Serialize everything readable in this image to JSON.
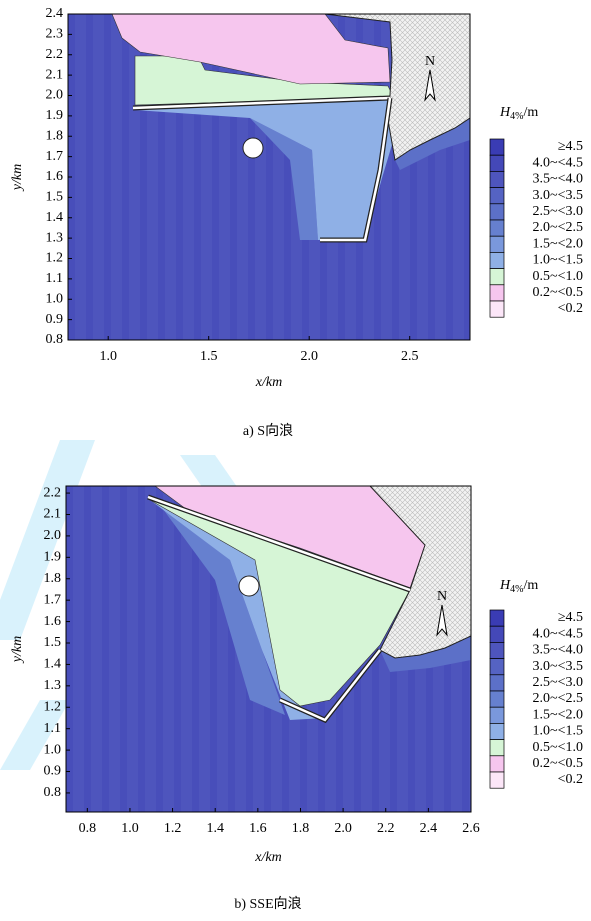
{
  "chart_data": [
    {
      "type": "contour",
      "caption": "a) S向浪",
      "xlabel": "x/km",
      "ylabel": "y/km",
      "north": "N",
      "xlim": [
        0.8,
        2.8
      ],
      "ylim": [
        0.8,
        2.4
      ],
      "xticks": [
        {
          "value": 1,
          "label": "1.0"
        },
        1.5,
        {
          "value": 2,
          "label": "2.0"
        },
        2.5
      ],
      "yticks": [
        0.8,
        0.9,
        {
          "value": 1,
          "label": "1.0"
        },
        1.1,
        1.2,
        1.3,
        1.4,
        1.5,
        1.6,
        1.7,
        1.8,
        1.9,
        {
          "value": 2,
          "label": "2.0"
        },
        2.1,
        2.2,
        2.3,
        2.4
      ],
      "legend_title": "H",
      "legend_title_sub": "4%",
      "legend_title_unit": "/m",
      "levels": [
        {
          "label": "≥4.5",
          "color": "#3a3cb4"
        },
        {
          "label": "4.0~<4.5",
          "color": "#4448b8"
        },
        {
          "label": "3.5~<4.0",
          "color": "#4e55bd"
        },
        {
          "label": "3.0~<3.5",
          "color": "#5563c3"
        },
        {
          "label": "2.5~<3.0",
          "color": "#5c70c8"
        },
        {
          "label": "2.0~<2.5",
          "color": "#6680cf"
        },
        {
          "label": "1.5~<2.0",
          "color": "#7a98dc"
        },
        {
          "label": "1.0~<1.5",
          "color": "#8fb0e6"
        },
        {
          "label": "0.5~<1.0",
          "color": "#d6f5d6"
        },
        {
          "label": "0.2~<0.5",
          "color": "#f6c6ee"
        },
        {
          "label": "<0.2",
          "color": "#fce6f8"
        }
      ]
    },
    {
      "type": "contour",
      "caption": "b) SSE向浪",
      "xlabel": "x/km",
      "ylabel": "y/km",
      "north": "N",
      "xlim": [
        0.7,
        2.6
      ],
      "ylim": [
        0.711,
        2.233
      ],
      "xticks": [
        0.8,
        {
          "value": 1,
          "label": "1.0"
        },
        1.2,
        1.4,
        1.6,
        1.8,
        {
          "value": 2,
          "label": "2.0"
        },
        2.2,
        2.4,
        2.6
      ],
      "yticks": [
        0.8,
        0.9,
        {
          "value": 1,
          "label": "1.0"
        },
        1.1,
        1.2,
        1.3,
        1.4,
        1.5,
        1.6,
        1.7,
        1.8,
        1.9,
        {
          "value": 2,
          "label": "2.0"
        },
        2.1,
        2.2
      ],
      "legend_title": "H",
      "legend_title_sub": "4%",
      "legend_title_unit": "/m",
      "levels": [
        {
          "label": "≥4.5",
          "color": "#3a3cb4"
        },
        {
          "label": "4.0~<4.5",
          "color": "#4448b8"
        },
        {
          "label": "3.5~<4.0",
          "color": "#4e55bd"
        },
        {
          "label": "3.0~<3.5",
          "color": "#5563c3"
        },
        {
          "label": "2.5~<3.0",
          "color": "#5c70c8"
        },
        {
          "label": "2.0~<2.5",
          "color": "#6680cf"
        },
        {
          "label": "1.5~<2.0",
          "color": "#7a98dc"
        },
        {
          "label": "1.0~<1.5",
          "color": "#8fb0e6"
        },
        {
          "label": "0.5~<1.0",
          "color": "#d6f5d6"
        },
        {
          "label": "0.2~<0.5",
          "color": "#f6c6ee"
        },
        {
          "label": "<0.2",
          "color": "#fce6f8"
        }
      ]
    }
  ]
}
